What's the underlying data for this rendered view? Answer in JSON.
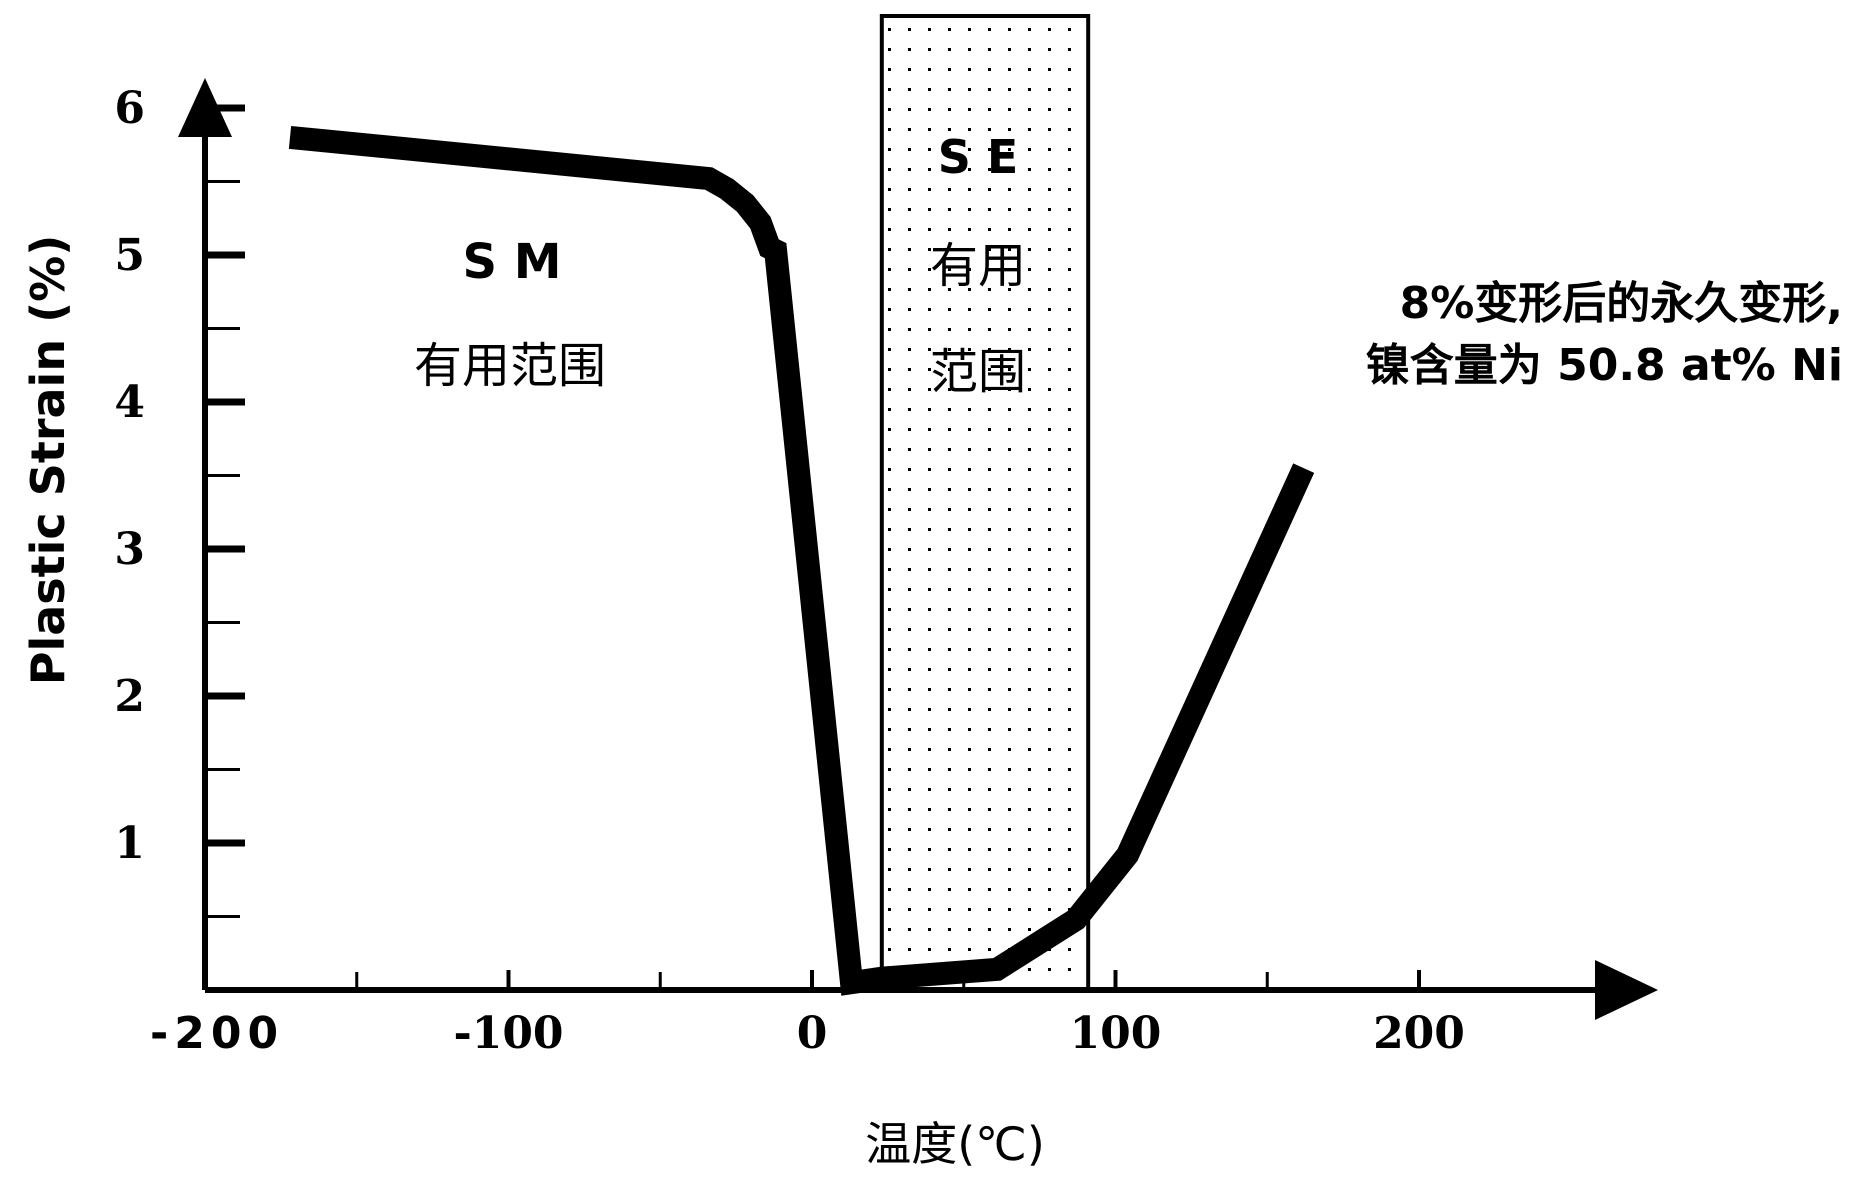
{
  "chart_data": {
    "type": "line",
    "title": "",
    "xlabel": "温度(℃)",
    "ylabel": "Plastic  Strain (%)",
    "xlim": [
      -200,
      250
    ],
    "ylim": [
      0,
      6
    ],
    "x_ticks": [
      {
        "value": -200,
        "label": "-200"
      },
      {
        "value": -100,
        "label": "-100"
      },
      {
        "value": 0,
        "label": "0"
      },
      {
        "value": 100,
        "label": "100"
      },
      {
        "value": 200,
        "label": "200"
      }
    ],
    "x_minor_ticks": [
      -150,
      -50,
      50,
      150
    ],
    "y_ticks": [
      {
        "value": 1,
        "label": "1"
      },
      {
        "value": 2,
        "label": "2"
      },
      {
        "value": 3,
        "label": "3"
      },
      {
        "value": 4,
        "label": "4"
      },
      {
        "value": 5,
        "label": "5"
      },
      {
        "value": 6,
        "label": "6"
      }
    ],
    "y_minor_ticks": [
      0.5,
      1.5,
      2.5,
      3.5,
      4.5,
      5.5
    ],
    "grid": false,
    "series": [
      {
        "color": "#000000",
        "x": [
          -172,
          -34,
          -28,
          -22,
          -17,
          -14,
          -12,
          13,
          23,
          61,
          87,
          104,
          162
        ],
        "y": [
          5.8,
          5.52,
          5.45,
          5.35,
          5.22,
          5.05,
          5.03,
          0.05,
          0.08,
          0.14,
          0.48,
          0.92,
          3.55
        ]
      }
    ],
    "regions": [
      {
        "name": "SE",
        "x_range": [
          23,
          91
        ],
        "pattern": "dotted",
        "label_line1": "S E",
        "label_line2": "有用",
        "label_line3": "范围"
      }
    ],
    "annotations": {
      "sm_label": "S M",
      "sm_desc": "有用范围",
      "note_line1": "8%变形后的永久变形,",
      "note_line2": "镍含量为 50.8 at% Ni"
    }
  }
}
